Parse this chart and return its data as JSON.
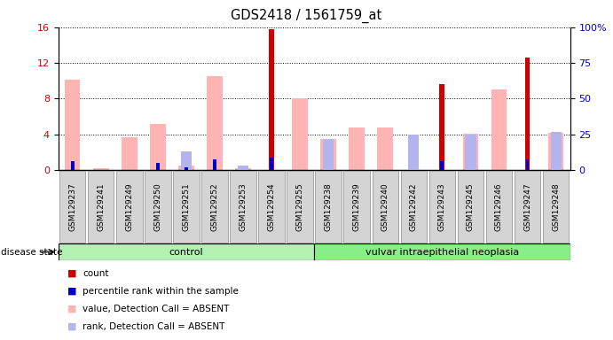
{
  "title": "GDS2418 / 1561759_at",
  "samples": [
    "GSM129237",
    "GSM129241",
    "GSM129249",
    "GSM129250",
    "GSM129251",
    "GSM129252",
    "GSM129253",
    "GSM129254",
    "GSM129255",
    "GSM129238",
    "GSM129239",
    "GSM129240",
    "GSM129242",
    "GSM129243",
    "GSM129245",
    "GSM129246",
    "GSM129247",
    "GSM129248"
  ],
  "count": [
    0,
    0,
    0,
    0,
    0,
    0,
    0,
    15.8,
    0,
    0,
    0,
    0,
    0,
    9.6,
    0,
    0,
    12.6,
    0
  ],
  "percentile_rank": [
    6.5,
    0,
    0,
    4.8,
    2.0,
    7.2,
    0,
    8.5,
    0,
    0,
    0,
    0,
    0,
    6.5,
    0,
    0,
    7.7,
    0
  ],
  "value_absent": [
    10.1,
    0.2,
    3.7,
    5.2,
    0.5,
    10.5,
    0.2,
    0,
    8.0,
    3.5,
    4.8,
    4.8,
    0,
    0,
    4.1,
    9.0,
    0,
    4.2
  ],
  "rank_absent": [
    0,
    0,
    0,
    0,
    2.1,
    0,
    0.5,
    0,
    0,
    3.5,
    0,
    0,
    4.0,
    0,
    4.0,
    0,
    0,
    4.3
  ],
  "ylim_left": [
    0,
    16
  ],
  "ylim_right": [
    0,
    100
  ],
  "yticks_left": [
    0,
    4,
    8,
    12,
    16
  ],
  "yticks_right": [
    0,
    25,
    50,
    75,
    100
  ],
  "color_count": "#cc0000",
  "color_percentile": "#0000cc",
  "color_value_absent": "#ffb3b3",
  "color_rank_absent": "#b3b3ee",
  "control_label": "control",
  "neoplasia_label": "vulvar intraepithelial neoplasia",
  "disease_state_label": "disease state",
  "legend_count": "count",
  "legend_percentile": "percentile rank within the sample",
  "legend_value": "value, Detection Call = ABSENT",
  "legend_rank": "rank, Detection Call = ABSENT",
  "group_split_idx": 9,
  "bg_color": "#ffffff",
  "gray_label_bg": "#d4d4d4",
  "green_light": "#b3f0b3",
  "green_dark": "#88ee88"
}
